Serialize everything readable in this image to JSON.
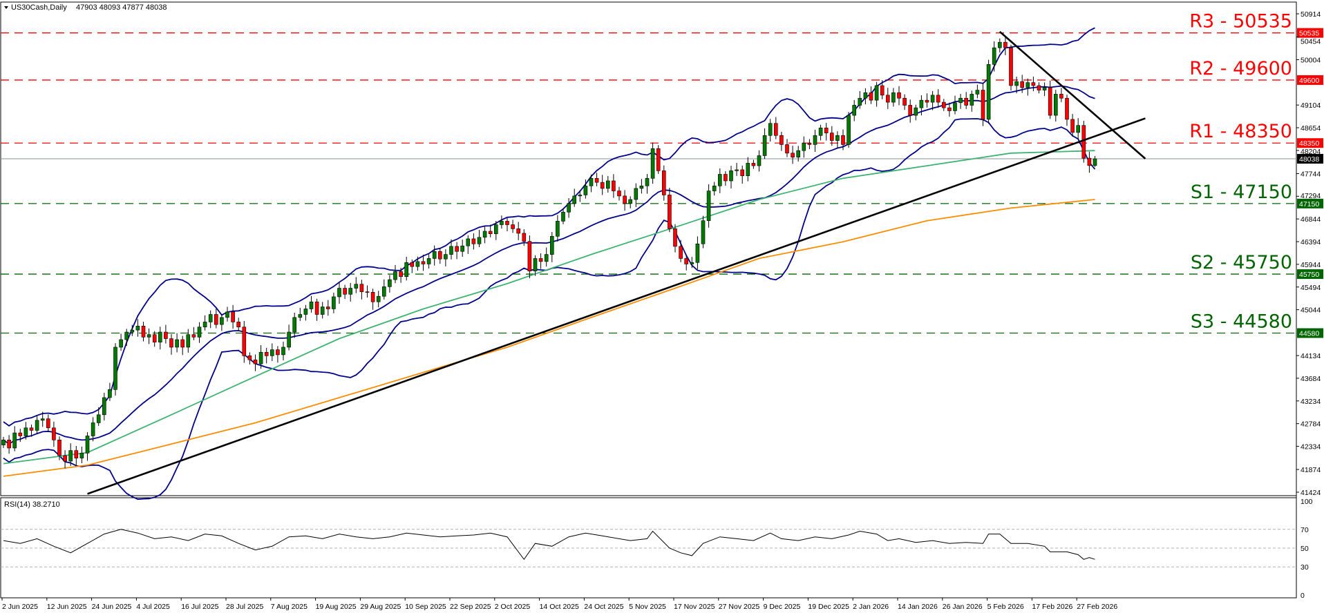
{
  "header": {
    "symbol": "US30Cash,Daily",
    "ohlc": "47903 48093 47877 48038",
    "collapse_icon": "triangle-down-icon"
  },
  "rsi_header": "RSI(14) 38.2710",
  "colors": {
    "bull": "#007a00",
    "bear": "#ff0000",
    "bollinger": "#00008b",
    "ma_fast": "#3cb371",
    "ma_slow": "#ff8c00",
    "resistance": "#ff0000",
    "support": "#006400",
    "trendline": "#000000",
    "last_price": "#000000"
  },
  "chart_data": [
    {
      "type": "candlestick",
      "title": "US30Cash,Daily",
      "last_bar": {
        "open": 47903,
        "high": 48093,
        "low": 47877,
        "close": 48038
      },
      "x_tick_labels": [
        "2 Jun 2025",
        "12 Jun 2025",
        "24 Jun 2025",
        "4 Jul 2025",
        "16 Jul 2025",
        "28 Jul 2025",
        "7 Aug 2025",
        "19 Aug 2025",
        "29 Aug 2025",
        "10 Sep 2025",
        "22 Sep 2025",
        "2 Oct 2025",
        "14 Oct 2025",
        "24 Oct 2025",
        "5 Nov 2025",
        "17 Nov 2025",
        "27 Nov 2025",
        "9 Dec 2025",
        "19 Dec 2025",
        "2 Jan 2026",
        "14 Jan 2026",
        "26 Jan 2026",
        "5 Feb 2026",
        "17 Feb 2026",
        "27 Feb 2026"
      ],
      "y_tick_labels": [
        "50914",
        "50454",
        "50004",
        "49104",
        "48654",
        "48204",
        "47744",
        "47294",
        "46844",
        "46394",
        "45944",
        "45494",
        "45044",
        "44134",
        "43684",
        "43234",
        "42784",
        "42334",
        "41874",
        "41424"
      ],
      "ylim": [
        41424,
        50914
      ],
      "close": [
        42460,
        42300,
        42600,
        42540,
        42700,
        42650,
        42850,
        42880,
        42700,
        42460,
        42150,
        42040,
        42250,
        42100,
        42200,
        42540,
        42800,
        42960,
        43300,
        43460,
        44300,
        44450,
        44600,
        44640,
        44720,
        44500,
        44550,
        44400,
        44600,
        44470,
        44300,
        44450,
        44300,
        44550,
        44500,
        44700,
        44800,
        44950,
        44750,
        44890,
        45000,
        44800,
        44700,
        44130,
        44050,
        43970,
        44200,
        44130,
        44250,
        44150,
        44300,
        44600,
        44890,
        44950,
        45060,
        45200,
        44950,
        45100,
        45060,
        45300,
        45470,
        45350,
        45470,
        45550,
        45400,
        45390,
        45200,
        45310,
        45500,
        45640,
        45800,
        45700,
        45980,
        45900,
        46000,
        45950,
        46060,
        46200,
        46050,
        46140,
        46300,
        46200,
        46310,
        46450,
        46350,
        46480,
        46600,
        46550,
        46730,
        46800,
        46730,
        46650,
        46560,
        46400,
        45810,
        46060,
        46000,
        46140,
        46500,
        46800,
        46980,
        47150,
        47300,
        47320,
        47500,
        47650,
        47570,
        47450,
        47600,
        47400,
        47300,
        47150,
        47230,
        47450,
        47500,
        47650,
        48240,
        47800,
        47320,
        46650,
        46300,
        46060,
        45950,
        45980,
        46350,
        46810,
        47400,
        47500,
        47730,
        47600,
        47800,
        47820,
        47700,
        47950,
        47900,
        48100,
        48500,
        48740,
        48500,
        48320,
        48150,
        48070,
        48200,
        48350,
        48320,
        48500,
        48650,
        48550,
        48400,
        48500,
        48320,
        48900,
        49100,
        49240,
        49350,
        49200,
        49490,
        49300,
        49160,
        49350,
        49240,
        49100,
        48900,
        49050,
        49200,
        49160,
        49300,
        49160,
        49050,
        48990,
        49150,
        49240,
        49100,
        49320,
        49400,
        48820,
        49910,
        50240,
        50350,
        50240,
        49490,
        49570,
        49450,
        49550,
        49490,
        49400,
        49450,
        48900,
        49320,
        49240,
        48820,
        48560,
        48700,
        48050,
        47903,
        48038
      ],
      "ma_fast": [
        [
          0,
          41990
        ],
        [
          15,
          42210
        ],
        [
          30,
          42960
        ],
        [
          45,
          43720
        ],
        [
          60,
          44470
        ],
        [
          75,
          45060
        ],
        [
          90,
          45560
        ],
        [
          105,
          46140
        ],
        [
          120,
          46680
        ],
        [
          135,
          47230
        ],
        [
          150,
          47650
        ],
        [
          165,
          47900
        ],
        [
          180,
          48150
        ],
        [
          195,
          48200
        ]
      ],
      "ma_slow": [
        [
          0,
          41740
        ],
        [
          15,
          41960
        ],
        [
          30,
          42380
        ],
        [
          45,
          42800
        ],
        [
          60,
          43300
        ],
        [
          75,
          43800
        ],
        [
          90,
          44300
        ],
        [
          105,
          44890
        ],
        [
          120,
          45470
        ],
        [
          135,
          46060
        ],
        [
          150,
          46390
        ],
        [
          165,
          46810
        ],
        [
          180,
          47060
        ],
        [
          195,
          47230
        ]
      ],
      "bollinger": {
        "period": 20,
        "deviations": 2
      },
      "levels": [
        {
          "label": "R3 - 50535",
          "price": 50535,
          "kind": "resistance",
          "badge": "50535"
        },
        {
          "label": "R2 - 49600",
          "price": 49600,
          "kind": "resistance",
          "badge": "49600"
        },
        {
          "label": "R1 - 48350",
          "price": 48350,
          "kind": "resistance",
          "badge": "48350"
        },
        {
          "label": "S1 - 47150",
          "price": 47150,
          "kind": "support",
          "badge": "47150"
        },
        {
          "label": "S2 - 45750",
          "price": 45750,
          "kind": "support",
          "badge": "45750"
        },
        {
          "label": "S3 - 44580",
          "price": 44580,
          "kind": "support",
          "badge": "44580"
        }
      ],
      "last_price": {
        "price": 48038,
        "badge": "48038"
      },
      "trendlines": [
        {
          "name": "uptrend",
          "from": [
            15,
            41390
          ],
          "to": [
            204,
            48840
          ]
        },
        {
          "name": "downtrend",
          "from": [
            178,
            50560
          ],
          "to": [
            204,
            48040
          ]
        }
      ]
    },
    {
      "type": "line",
      "title": "RSI(14) 38.2710",
      "ylim": [
        0,
        100
      ],
      "y_tick_labels": [
        "100",
        "70",
        "50",
        "30",
        "0"
      ],
      "levels": [
        70,
        50,
        30
      ],
      "rsi": [
        [
          0,
          58
        ],
        [
          3,
          55
        ],
        [
          6,
          60
        ],
        [
          9,
          52
        ],
        [
          12,
          45
        ],
        [
          15,
          55
        ],
        [
          18,
          65
        ],
        [
          21,
          70
        ],
        [
          24,
          66
        ],
        [
          27,
          60
        ],
        [
          30,
          62
        ],
        [
          33,
          58
        ],
        [
          36,
          65
        ],
        [
          39,
          63
        ],
        [
          42,
          55
        ],
        [
          45,
          48
        ],
        [
          48,
          52
        ],
        [
          51,
          62
        ],
        [
          54,
          63
        ],
        [
          57,
          60
        ],
        [
          60,
          65
        ],
        [
          63,
          62
        ],
        [
          66,
          60
        ],
        [
          69,
          62
        ],
        [
          72,
          66
        ],
        [
          75,
          64
        ],
        [
          78,
          62
        ],
        [
          81,
          63
        ],
        [
          84,
          64
        ],
        [
          87,
          66
        ],
        [
          90,
          62
        ],
        [
          93,
          38
        ],
        [
          95,
          55
        ],
        [
          98,
          52
        ],
        [
          101,
          62
        ],
        [
          104,
          66
        ],
        [
          107,
          63
        ],
        [
          112,
          58
        ],
        [
          115,
          60
        ],
        [
          116,
          68
        ],
        [
          119,
          50
        ],
        [
          121,
          45
        ],
        [
          123,
          42
        ],
        [
          125,
          55
        ],
        [
          128,
          62
        ],
        [
          131,
          60
        ],
        [
          134,
          58
        ],
        [
          137,
          66
        ],
        [
          139,
          60
        ],
        [
          142,
          58
        ],
        [
          145,
          62
        ],
        [
          148,
          60
        ],
        [
          151,
          64
        ],
        [
          153,
          68
        ],
        [
          156,
          65
        ],
        [
          158,
          58
        ],
        [
          160,
          60
        ],
        [
          163,
          56
        ],
        [
          166,
          58
        ],
        [
          169,
          55
        ],
        [
          172,
          56
        ],
        [
          175,
          55
        ],
        [
          176,
          65
        ],
        [
          178,
          65
        ],
        [
          180,
          55
        ],
        [
          183,
          55
        ],
        [
          186,
          52
        ],
        [
          187,
          46
        ],
        [
          190,
          46
        ],
        [
          192,
          43
        ],
        [
          193,
          38
        ],
        [
          194,
          40
        ],
        [
          195,
          38
        ]
      ]
    }
  ]
}
